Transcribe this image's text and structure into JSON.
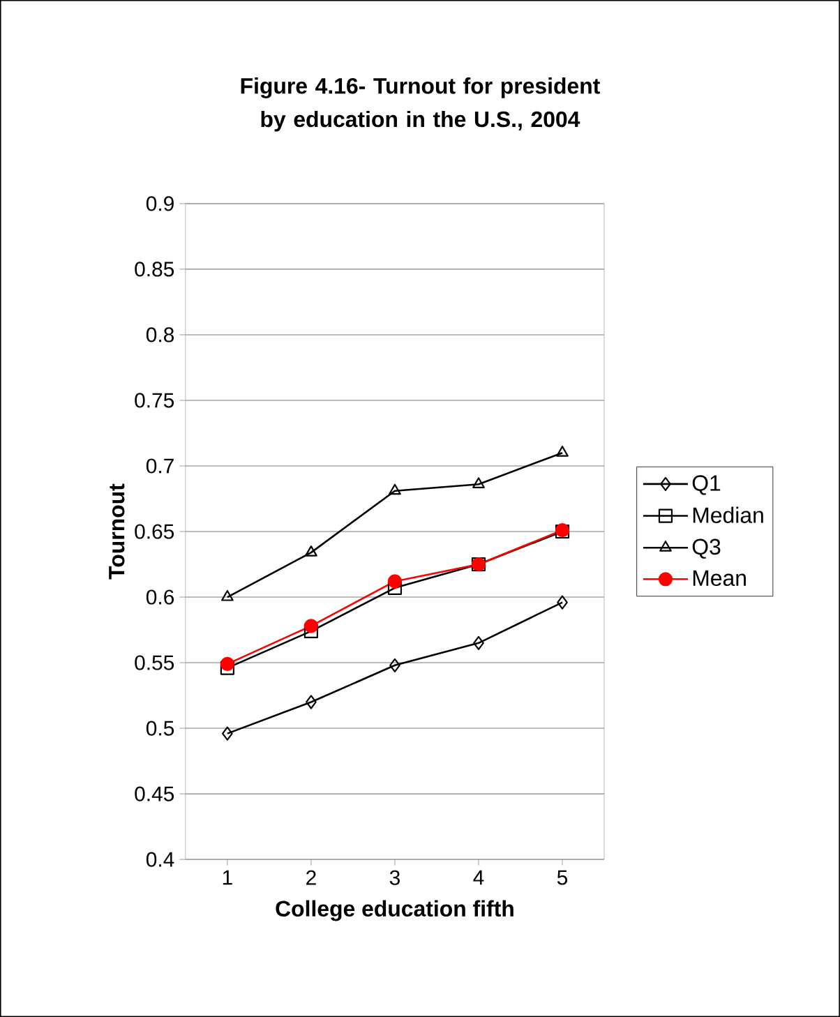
{
  "chart_data": {
    "type": "line",
    "title": "Figure 4.16- Turnout for president by education in the U.S., 2004",
    "xlabel": "College education fifth",
    "ylabel": "Tournout",
    "categories": [
      "1",
      "2",
      "3",
      "4",
      "5"
    ],
    "series": [
      {
        "name": "Q1",
        "color": "#000000",
        "marker": "diamond",
        "values": [
          0.496,
          0.52,
          0.548,
          0.565,
          0.596
        ]
      },
      {
        "name": "Median",
        "color": "#000000",
        "marker": "square",
        "values": [
          0.546,
          0.574,
          0.607,
          0.625,
          0.65
        ]
      },
      {
        "name": "Q3",
        "color": "#000000",
        "marker": "triangle",
        "values": [
          0.6,
          0.634,
          0.681,
          0.686,
          0.71
        ]
      },
      {
        "name": "Mean",
        "color": "#ff0000",
        "marker": "circle",
        "values": [
          0.549,
          0.578,
          0.612,
          0.625,
          0.651
        ]
      }
    ],
    "ylim": [
      0.4,
      0.9
    ],
    "yticks": [
      0.4,
      0.45,
      0.5,
      0.55,
      0.6,
      0.65,
      0.7,
      0.75,
      0.8,
      0.85,
      0.9
    ],
    "grid": "y",
    "legend": "right",
    "line_style": "solid"
  }
}
